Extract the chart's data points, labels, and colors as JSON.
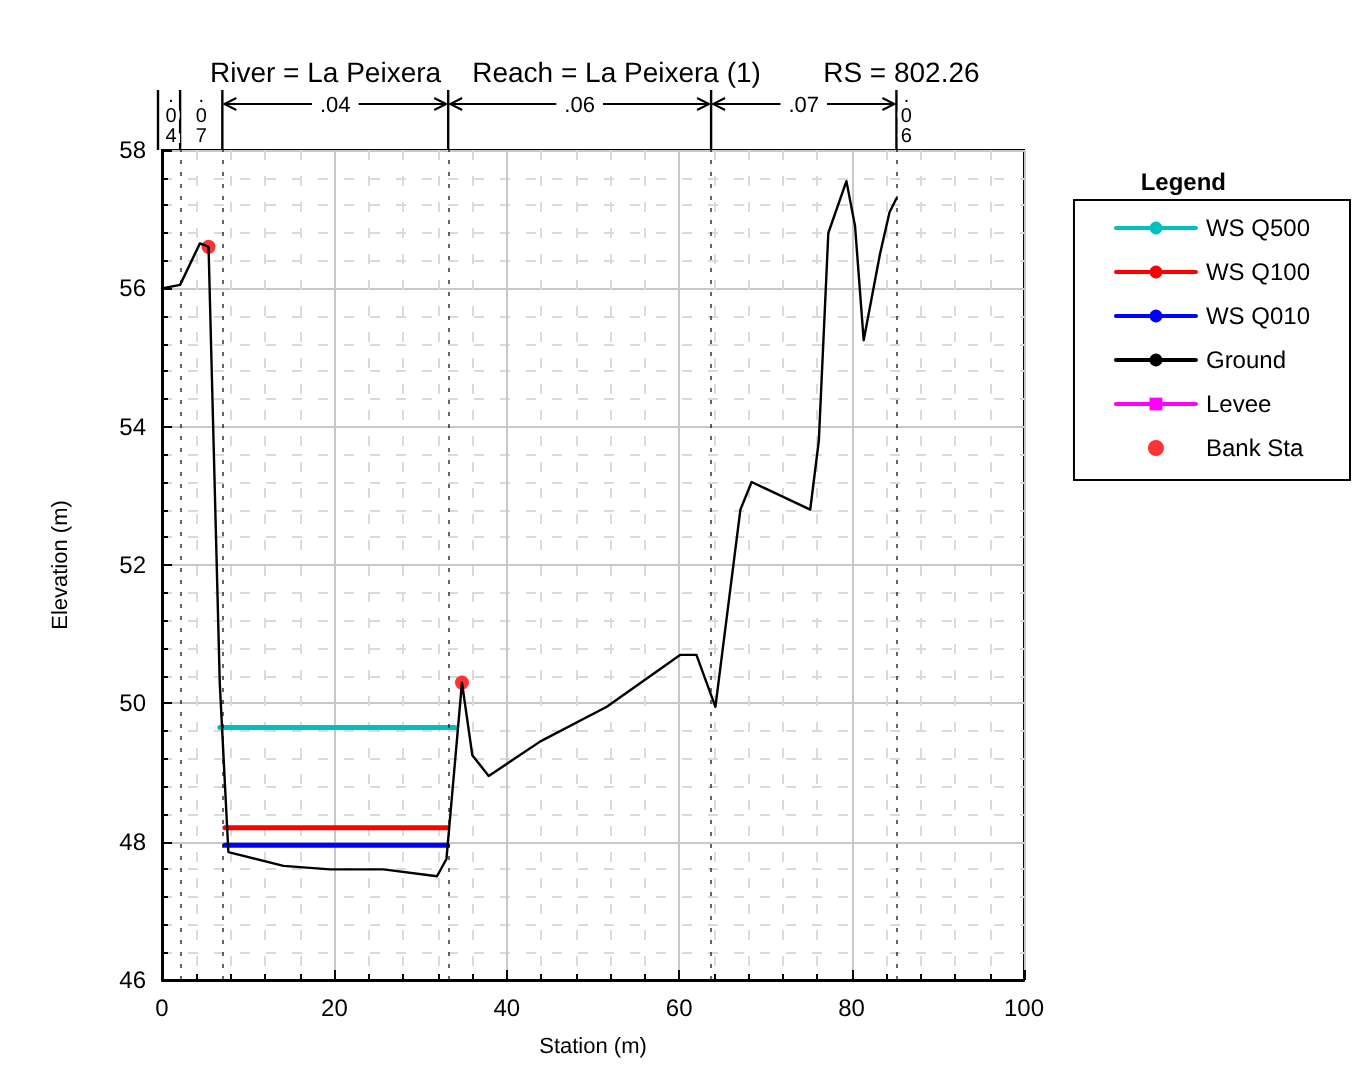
{
  "chart_data": {
    "type": "line",
    "title": "River = La Peixera    Reach = La Peixera (1)        RS = 802.26",
    "xlabel": "Station (m)",
    "ylabel": "Elevation (m)",
    "legend_title": "Legend",
    "xlim": [
      0,
      100
    ],
    "xticks": [
      0,
      20,
      40,
      60,
      80,
      100
    ],
    "ylim": [
      46,
      58
    ],
    "yticks": [
      46,
      48,
      50,
      52,
      54,
      56,
      58
    ],
    "grid": true,
    "legend": "right",
    "marker": "none",
    "series": [
      {
        "name": "WS Q500",
        "color": "#00c0c0",
        "x": [
          6.7,
          34.0
        ],
        "values": [
          49.65,
          49.65
        ]
      },
      {
        "name": "WS Q100",
        "color": "#ff0000",
        "x": [
          7.3,
          33.1
        ],
        "values": [
          48.2,
          48.2
        ]
      },
      {
        "name": "WS Q010",
        "color": "#0000ff",
        "x": [
          7.3,
          33.1
        ],
        "values": [
          47.95,
          47.95
        ]
      },
      {
        "name": "Ground",
        "color": "#000000",
        "x": [
          0,
          2.1,
          4.4,
          5.4,
          6.7,
          7.7,
          14.1,
          19.5,
          25.7,
          31.9,
          33.0,
          34.8,
          36.0,
          37.9,
          43.9,
          51.6,
          60.1,
          62.0,
          64.2,
          67.1,
          68.4,
          75.2,
          76.2,
          77.3,
          79.4,
          80.4,
          81.4,
          83.3,
          84.4,
          85.2
        ],
        "values": [
          56.0,
          56.05,
          56.65,
          56.6,
          50.3,
          47.85,
          47.65,
          47.6,
          47.6,
          47.5,
          47.75,
          50.3,
          49.25,
          48.95,
          49.45,
          49.95,
          50.7,
          50.7,
          49.95,
          52.8,
          53.2,
          52.8,
          53.8,
          56.8,
          57.55,
          56.9,
          55.25,
          56.5,
          57.1,
          57.3
        ]
      },
      {
        "name": "Levee",
        "color": "#ff00ff",
        "type": "line",
        "marker": "square"
      },
      {
        "name": "Bank Sta",
        "color": "#ff0000",
        "type": "scatter",
        "marker": "circle",
        "x": [
          5.4,
          34.8
        ],
        "values": [
          56.6,
          50.3
        ]
      }
    ],
    "ref_lines": [
      {
        "axis": "x",
        "value": 2.1
      },
      {
        "axis": "x",
        "value": 7.0
      },
      {
        "axis": "x",
        "value": 33.2
      },
      {
        "axis": "x",
        "value": 63.7
      },
      {
        "axis": "x",
        "value": 85.2
      }
    ],
    "annotations": [
      ".04",
      ".07",
      ".04",
      ".06",
      ".07",
      ".06"
    ]
  }
}
